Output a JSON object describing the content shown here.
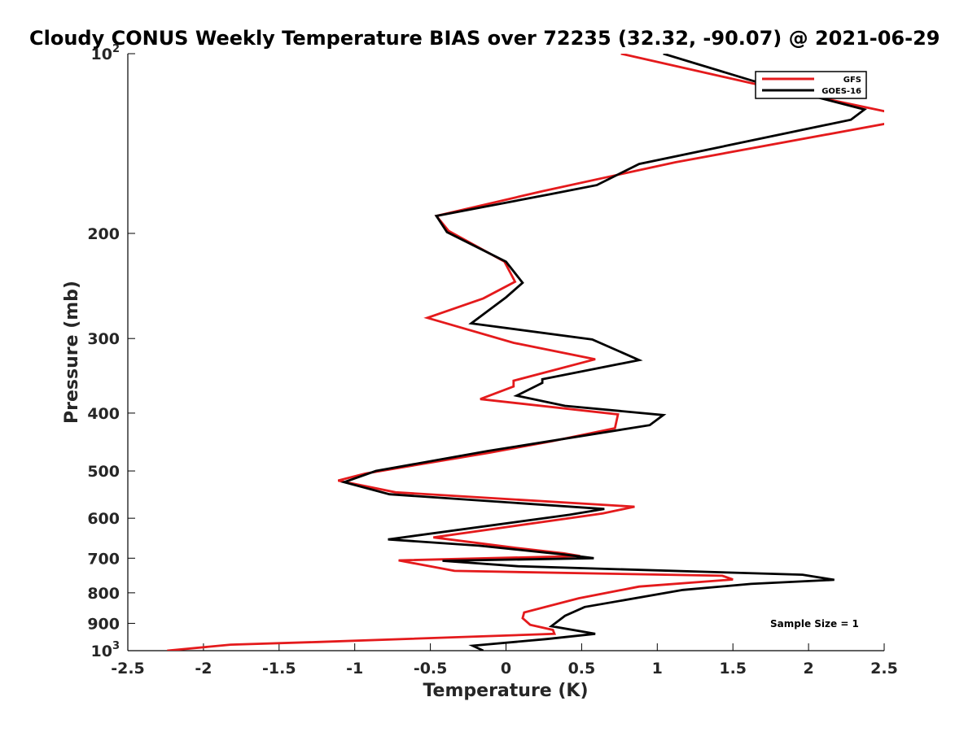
{
  "chart_data": {
    "type": "line",
    "title": "Cloudy CONUS Weekly Temperature BIAS over 72235 (32.32, -90.07) @ 2021-06-29",
    "xlabel": "Temperature (K)",
    "ylabel": "Pressure (mb)",
    "xlim": [
      -2.5,
      2.5
    ],
    "ylim": [
      1000,
      100
    ],
    "yscale": "log",
    "x_ticks": [
      "-2.5",
      "-2",
      "-1.5",
      "-1",
      "-0.5",
      "0",
      "0.5",
      "1",
      "1.5",
      "2",
      "2.5"
    ],
    "x_tick_values": [
      -2.5,
      -2,
      -1.5,
      -1,
      -0.5,
      0,
      0.5,
      1,
      1.5,
      2,
      2.5
    ],
    "y_ticks": [
      {
        "value": 100,
        "base": "10",
        "exp": "2"
      },
      {
        "value": 200,
        "label": "200"
      },
      {
        "value": 300,
        "label": "300"
      },
      {
        "value": 400,
        "label": "400"
      },
      {
        "value": 500,
        "label": "500"
      },
      {
        "value": 600,
        "label": "600"
      },
      {
        "value": 700,
        "label": "700"
      },
      {
        "value": 800,
        "label": "800"
      },
      {
        "value": 900,
        "label": "900"
      },
      {
        "value": 1000,
        "base": "10",
        "exp": "3"
      }
    ],
    "legend": {
      "position": "top-right"
    },
    "annotation": "Sample Size = 1",
    "series": [
      {
        "name": "GFS",
        "color": "#e41a1c",
        "points": [
          [
            0.76,
            100
          ],
          [
            1.62,
            112
          ],
          [
            2.51,
            125
          ],
          [
            2.51,
            131
          ],
          [
            1.12,
            152
          ],
          [
            0.24,
            170
          ],
          [
            -0.46,
            187
          ],
          [
            -0.38,
            198
          ],
          [
            -0.01,
            223
          ],
          [
            0.06,
            241
          ],
          [
            -0.15,
            257
          ],
          [
            -0.52,
            277
          ],
          [
            0.05,
            305
          ],
          [
            0.59,
            325
          ],
          [
            0.05,
            353
          ],
          [
            0.05,
            361
          ],
          [
            -0.17,
            379
          ],
          [
            0.74,
            402
          ],
          [
            0.72,
            424
          ],
          [
            0.3,
            446
          ],
          [
            -0.11,
            466
          ],
          [
            -0.93,
            505
          ],
          [
            -1.11,
            519
          ],
          [
            -0.73,
            543
          ],
          [
            0.85,
            574
          ],
          [
            0.64,
            589
          ],
          [
            -0.48,
            646
          ],
          [
            0.09,
            674
          ],
          [
            0.38,
            687
          ],
          [
            0.49,
            694
          ],
          [
            -0.71,
            706
          ],
          [
            -0.34,
            735
          ],
          [
            1.43,
            749
          ],
          [
            1.5,
            760
          ],
          [
            0.88,
            781
          ],
          [
            0.48,
            817
          ],
          [
            0.12,
            863
          ],
          [
            0.11,
            882
          ],
          [
            0.16,
            905
          ],
          [
            0.31,
            923
          ],
          [
            0.32,
            937
          ],
          [
            -1.24,
            967
          ],
          [
            -1.82,
            977
          ],
          [
            -2.24,
            1000
          ]
        ]
      },
      {
        "name": "GOES-16",
        "color": "#000000",
        "points": [
          [
            1.04,
            100
          ],
          [
            1.63,
            111
          ],
          [
            2.37,
            124
          ],
          [
            2.28,
            129
          ],
          [
            0.88,
            153
          ],
          [
            0.6,
            166
          ],
          [
            0.29,
            172
          ],
          [
            -0.46,
            187
          ],
          [
            -0.39,
            199
          ],
          [
            0.0,
            223
          ],
          [
            0.11,
            242
          ],
          [
            0.0,
            256
          ],
          [
            -0.23,
            283
          ],
          [
            0.57,
            301
          ],
          [
            0.88,
            326
          ],
          [
            0.24,
            351
          ],
          [
            0.24,
            356
          ],
          [
            0.07,
            374
          ],
          [
            0.39,
            389
          ],
          [
            1.04,
            403
          ],
          [
            0.95,
            419
          ],
          [
            -0.12,
            463
          ],
          [
            -0.86,
            500
          ],
          [
            -1.07,
            522
          ],
          [
            -0.77,
            547
          ],
          [
            0.65,
            579
          ],
          [
            0.42,
            592
          ],
          [
            -0.78,
            651
          ],
          [
            -0.18,
            667
          ],
          [
            0.38,
            690
          ],
          [
            0.58,
            700
          ],
          [
            -0.42,
            707
          ],
          [
            0.08,
            722
          ],
          [
            1.96,
            746
          ],
          [
            2.17,
            761
          ],
          [
            1.62,
            773
          ],
          [
            1.17,
            791
          ],
          [
            0.52,
            845
          ],
          [
            0.39,
            874
          ],
          [
            0.3,
            910
          ],
          [
            0.59,
            937
          ],
          [
            0.27,
            956
          ],
          [
            -0.22,
            981
          ],
          [
            -0.15,
            1000
          ]
        ]
      }
    ]
  }
}
